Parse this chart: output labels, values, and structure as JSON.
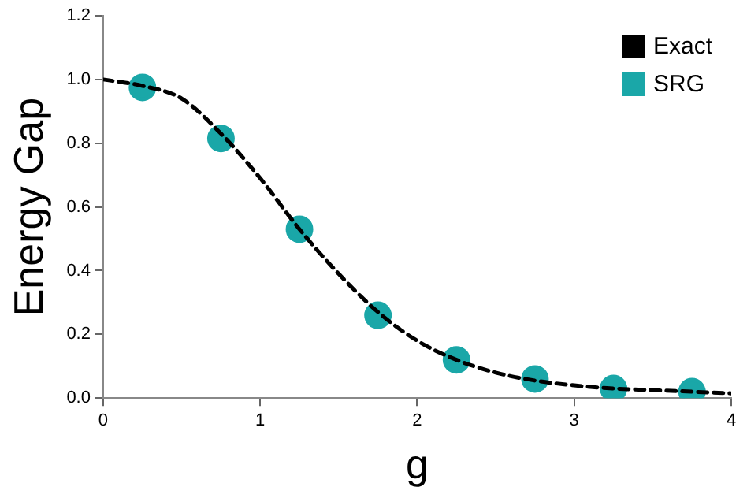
{
  "chart_data": {
    "type": "line",
    "xlabel": "g",
    "ylabel": "Energy Gap",
    "xlim": [
      0,
      4
    ],
    "xticks": [
      0,
      1,
      2,
      3,
      4
    ],
    "ylim": [
      0,
      1.2
    ],
    "yticks": [
      {
        "value": 0,
        "label": "0.0"
      },
      {
        "value": 0.2,
        "label": "0.2"
      },
      {
        "value": 0.4,
        "label": "0.4"
      },
      {
        "value": 0.6,
        "label": "0.6"
      },
      {
        "value": 0.8,
        "label": "0.8"
      },
      {
        "value": 1,
        "label": "1.0"
      },
      {
        "value": 1.2,
        "label": "1.2"
      }
    ],
    "grid": false,
    "legend": "top right",
    "series": [
      {
        "name": "Exact",
        "color": "#000000",
        "line_style": "dashed",
        "marker": "none",
        "x": [
          0,
          0.25,
          0.5,
          0.75,
          1.0,
          1.25,
          1.5,
          1.75,
          2.0,
          2.25,
          2.5,
          2.75,
          3.0,
          3.25,
          3.5,
          3.75,
          4.0
        ],
        "values": [
          1.0,
          0.98,
          0.94,
          0.83,
          0.69,
          0.53,
          0.39,
          0.27,
          0.18,
          0.12,
          0.08,
          0.055,
          0.04,
          0.03,
          0.025,
          0.02,
          0.015
        ]
      },
      {
        "name": "SRG",
        "type": "scatter",
        "color": "#1aa7a8",
        "marker": "circle",
        "x": [
          0.25,
          0.75,
          1.25,
          1.75,
          2.25,
          2.75,
          3.25,
          3.75
        ],
        "values": [
          0.975,
          0.815,
          0.53,
          0.26,
          0.12,
          0.06,
          0.03,
          0.02
        ]
      }
    ]
  }
}
